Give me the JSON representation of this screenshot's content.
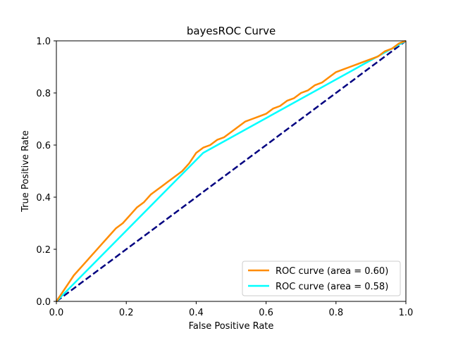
{
  "chart_data": {
    "type": "line",
    "title": "bayesROC Curve",
    "xlabel": "False Positive Rate",
    "ylabel": "True Positive Rate",
    "xlim": [
      0.0,
      1.0
    ],
    "ylim": [
      0.0,
      1.0
    ],
    "xticks": [
      0.0,
      0.2,
      0.4,
      0.6,
      0.8,
      1.0
    ],
    "yticks": [
      0.0,
      0.2,
      0.4,
      0.6,
      0.8,
      1.0
    ],
    "xtick_labels": [
      "0.0",
      "0.2",
      "0.4",
      "0.6",
      "0.8",
      "1.0"
    ],
    "ytick_labels": [
      "0.0",
      "0.2",
      "0.4",
      "0.6",
      "0.8",
      "1.0"
    ],
    "grid": false,
    "legend_position": "bottom-right",
    "series": [
      {
        "name": "ROC curve (area = 0.60)",
        "color": "#ff8c00",
        "style": "solid",
        "x": [
          0.0,
          0.01,
          0.02,
          0.03,
          0.05,
          0.07,
          0.09,
          0.11,
          0.13,
          0.15,
          0.17,
          0.19,
          0.21,
          0.23,
          0.25,
          0.27,
          0.29,
          0.3,
          0.32,
          0.34,
          0.36,
          0.38,
          0.4,
          0.42,
          0.44,
          0.46,
          0.48,
          0.5,
          0.52,
          0.54,
          0.56,
          0.58,
          0.6,
          0.62,
          0.64,
          0.66,
          0.68,
          0.7,
          0.72,
          0.74,
          0.76,
          0.78,
          0.8,
          0.82,
          0.84,
          0.86,
          0.88,
          0.9,
          0.92,
          0.94,
          0.96,
          0.98,
          1.0
        ],
        "y": [
          0.0,
          0.02,
          0.04,
          0.06,
          0.1,
          0.13,
          0.16,
          0.19,
          0.22,
          0.25,
          0.28,
          0.3,
          0.33,
          0.36,
          0.38,
          0.41,
          0.43,
          0.44,
          0.46,
          0.48,
          0.5,
          0.53,
          0.57,
          0.59,
          0.6,
          0.62,
          0.63,
          0.65,
          0.67,
          0.69,
          0.7,
          0.71,
          0.72,
          0.74,
          0.75,
          0.77,
          0.78,
          0.8,
          0.81,
          0.83,
          0.84,
          0.86,
          0.88,
          0.89,
          0.9,
          0.91,
          0.92,
          0.93,
          0.94,
          0.96,
          0.97,
          0.99,
          1.0
        ]
      },
      {
        "name": "ROC curve (area = 0.58)",
        "color": "#00ffff",
        "style": "solid",
        "x": [
          0.0,
          0.42,
          1.0
        ],
        "y": [
          0.0,
          0.57,
          1.0
        ]
      },
      {
        "name": "",
        "color": "#000080",
        "style": "dashed",
        "x": [
          0.0,
          1.0
        ],
        "y": [
          0.0,
          1.0
        ]
      }
    ]
  }
}
